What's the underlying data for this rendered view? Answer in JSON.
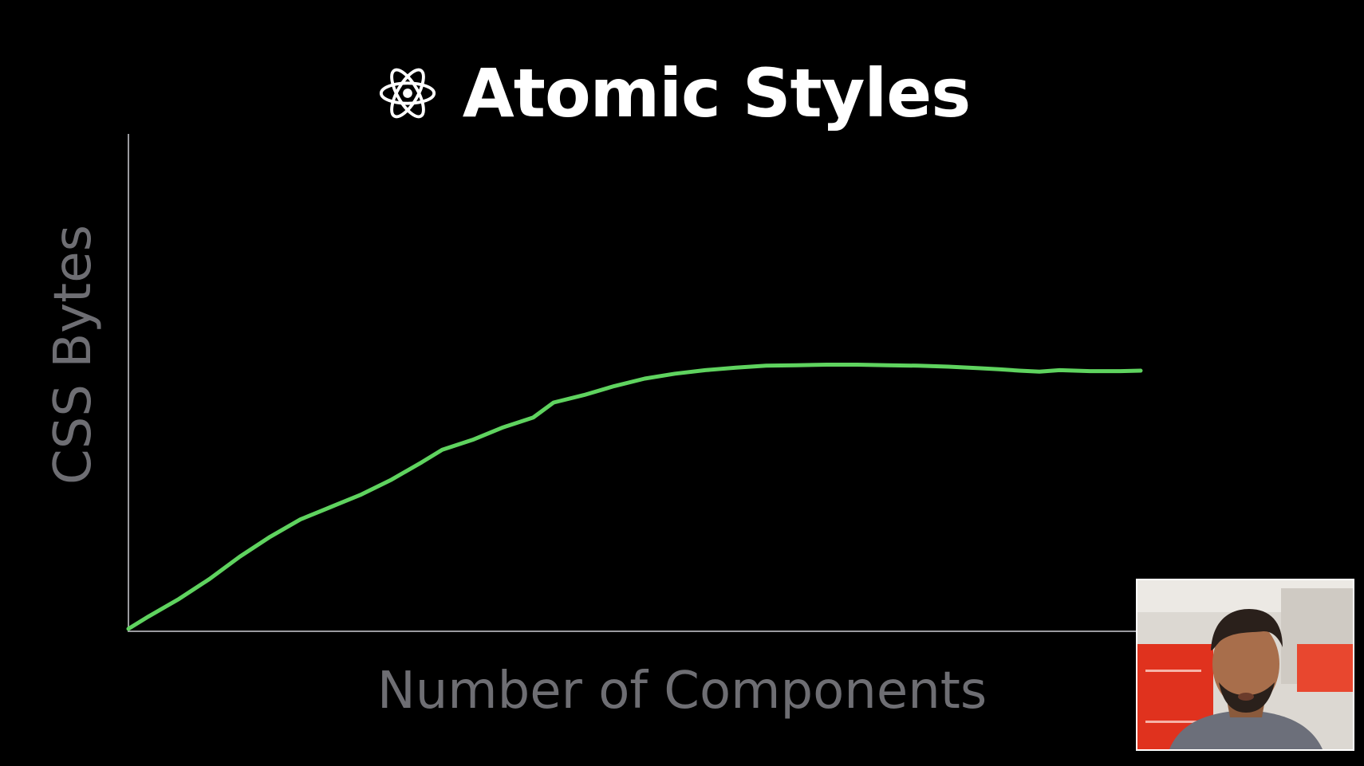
{
  "slide": {
    "title": "Atomic Styles",
    "title_icon": "atom-icon"
  },
  "colors": {
    "background": "#000000",
    "title": "#ffffff",
    "axis": "#9a9a9f",
    "axis_label": "#6e6e73",
    "line": "#5fd35f"
  },
  "chart_data": {
    "type": "line",
    "title": "Atomic Styles",
    "xlabel": "Number of Components",
    "ylabel": "CSS Bytes",
    "xlim": [
      0,
      100
    ],
    "ylim": [
      0,
      100
    ],
    "grid": false,
    "ticks": false,
    "series": [
      {
        "x": [
          0,
          2,
          5,
          8,
          11,
          14,
          17,
          20,
          23,
          26,
          29,
          31,
          34,
          37,
          40,
          42,
          45,
          48,
          51,
          54,
          57,
          60,
          63,
          66,
          69,
          72,
          75,
          78,
          81,
          84,
          86,
          88,
          90,
          92,
          95,
          98,
          100
        ],
        "y": [
          0.5,
          3,
          6.5,
          10.5,
          15,
          19,
          22.5,
          25,
          27.5,
          30.5,
          34,
          36.5,
          38.5,
          41,
          43,
          46,
          47.5,
          49.3,
          50.8,
          51.8,
          52.5,
          53,
          53.4,
          53.5,
          53.6,
          53.6,
          53.5,
          53.4,
          53.2,
          52.9,
          52.7,
          52.4,
          52.2,
          52.5,
          52.3,
          52.3,
          52.4
        ]
      }
    ]
  },
  "video_inset": {
    "description_icon": "presenter-video"
  }
}
